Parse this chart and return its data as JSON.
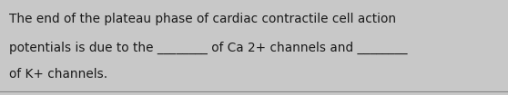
{
  "background_color": "#c8c8c8",
  "text_lines": [
    "The end of the plateau phase of cardiac contractile cell action",
    "potentials is due to the ________ of Ca 2+ channels and ________",
    "of K+ channels."
  ],
  "font_size": 9.8,
  "font_color": "#1a1a1a",
  "font_family": "DejaVu Sans",
  "bottom_line_color": "#888888",
  "figwidth": 5.58,
  "figheight": 1.05,
  "dpi": 100
}
